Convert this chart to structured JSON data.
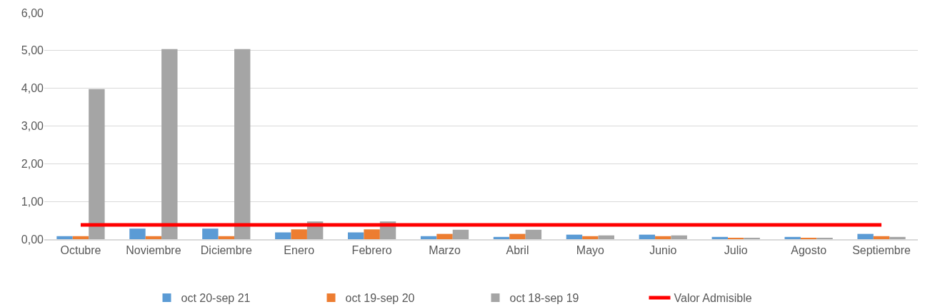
{
  "chart_data": {
    "type": "bar",
    "categories": [
      "Octubre",
      "Noviembre",
      "Diciembre",
      "Enero",
      "Febrero",
      "Marzo",
      "Abril",
      "Mayo",
      "Junio",
      "Julio",
      "Agosto",
      "Septiembre"
    ],
    "series": [
      {
        "name": "oct 20-sep 21",
        "color": "#5b9bd5",
        "values": [
          0.08,
          0.28,
          0.28,
          0.18,
          0.18,
          0.08,
          0.06,
          0.12,
          0.12,
          0.06,
          0.06,
          0.14
        ]
      },
      {
        "name": "oct 19-sep 20",
        "color": "#ed7d31",
        "values": [
          0.08,
          0.08,
          0.08,
          0.26,
          0.26,
          0.14,
          0.14,
          0.08,
          0.08,
          0.03,
          0.03,
          0.08
        ]
      },
      {
        "name": "oct 18-sep 19",
        "color": "#a5a5a5",
        "values": [
          3.98,
          5.04,
          5.04,
          0.47,
          0.47,
          0.25,
          0.25,
          0.1,
          0.1,
          0.03,
          0.03,
          0.06
        ]
      },
      {
        "name": "Valor Admisible",
        "type": "line",
        "color": "#ff0000",
        "line_style": "solid",
        "values": [
          0.38,
          0.38,
          0.38,
          0.38,
          0.38,
          0.38,
          0.38,
          0.38,
          0.38,
          0.38,
          0.38,
          0.38
        ]
      }
    ],
    "ylim": [
      0,
      6
    ],
    "yticks": [
      {
        "value": 0,
        "label": "0,00"
      },
      {
        "value": 1,
        "label": "1,00"
      },
      {
        "value": 2,
        "label": "2,00"
      },
      {
        "value": 3,
        "label": "3,00"
      },
      {
        "value": 4,
        "label": "4,00"
      },
      {
        "value": 5,
        "label": "5,00"
      },
      {
        "value": 6,
        "label": "6,00"
      }
    ],
    "grid": "y",
    "legend": "bottom"
  }
}
